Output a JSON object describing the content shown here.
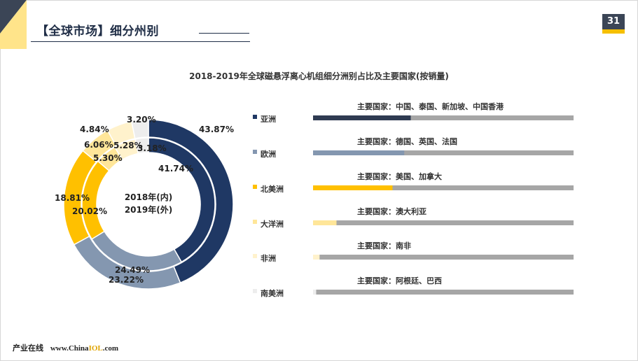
{
  "header": {
    "title": "【全球市场】细分州别",
    "page_number": "31"
  },
  "footer": {
    "brand": "产业在线",
    "site_prefix": "www.China",
    "site_highlight": "IOL",
    "site_suffix": ".com"
  },
  "colors": {
    "navy": "#1f3864",
    "slate": "#8497b0",
    "gold": "#ffc000",
    "light_gold": "#ffe699",
    "cream": "#fff2cc",
    "light_gray": "#ededed",
    "track": "#a6a6a6",
    "accent_dark": "#3b4556",
    "accent_yellow": "#f5bf00"
  },
  "chart_data": {
    "type": "donut",
    "title": "2018-2019年全球磁悬浮离心机组细分洲别占比及主要国家(按销量)",
    "center_label_line1": "2018年(内)",
    "center_label_line2": "2019年(外)",
    "categories": [
      "亚洲",
      "欧洲",
      "北美洲",
      "大洋洲",
      "非洲",
      "南美洲"
    ],
    "series": [
      {
        "name": "2018年(内)",
        "values": [
          41.74,
          24.49,
          20.02,
          5.3,
          5.28,
          3.18
        ],
        "labels": [
          "41.74%",
          "24.49%",
          "20.02%",
          "5.30%",
          "5.28%",
          "3.18%"
        ]
      },
      {
        "name": "2019年(外)",
        "values": [
          43.87,
          23.22,
          18.81,
          6.06,
          4.84,
          3.2
        ],
        "labels": [
          "43.87%",
          "23.22%",
          "18.81%",
          "6.06%",
          "4.84%",
          "3.20%"
        ]
      }
    ],
    "legend": [
      {
        "name": "亚洲",
        "countries": "主要国家：中国、泰国、新加坡、中国香港",
        "color": "#1f3864"
      },
      {
        "name": "欧洲",
        "countries": "主要国家：德国、英国、法国",
        "color": "#8497b0"
      },
      {
        "name": "北美洲",
        "countries": "主要国家：美国、加拿大",
        "color": "#ffc000"
      },
      {
        "name": "大洋洲",
        "countries": "主要国家：澳大利亚",
        "color": "#ffe699"
      },
      {
        "name": "非洲",
        "countries": "主要国家：南非",
        "color": "#fff2cc"
      },
      {
        "name": "南美洲",
        "countries": "主要国家：阿根廷、巴西",
        "color": "#ededed"
      }
    ],
    "bar_fraction": [
      0.375,
      0.35,
      0.305,
      0.09,
      0.025,
      0.012
    ],
    "legend_placement": "right"
  }
}
